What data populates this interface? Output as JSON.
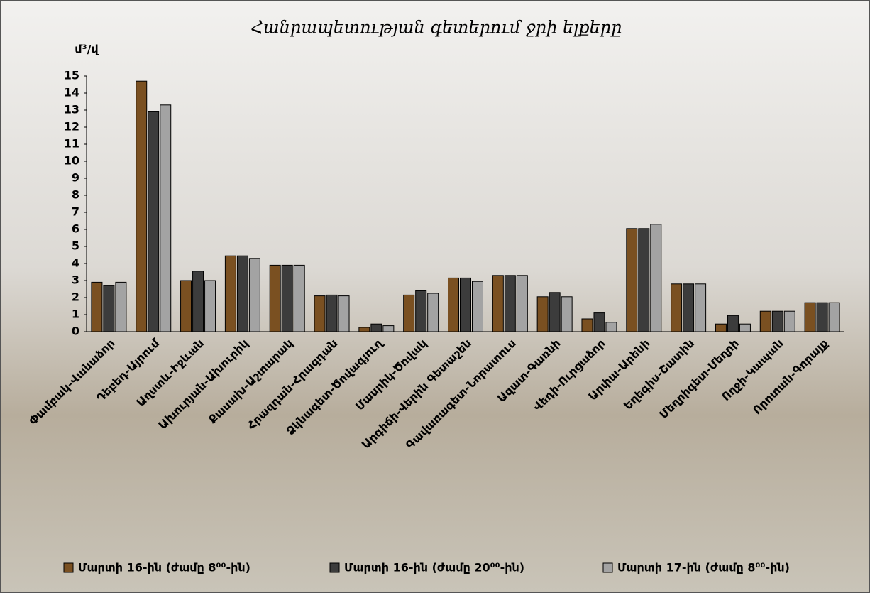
{
  "chart_data": {
    "type": "bar",
    "title": "Հանրապետության գետերում ջրի ելքերը",
    "y_label": "մ³/վ",
    "categories": [
      "Փամբակ-Վանաձոր",
      "Դեբեդ-Այրում",
      "Աղստև-Իջևան",
      "Ախուրյան-Ախուրիկ",
      "Քասախ-Աշտարակ",
      "Հրազդան-Հրազդան",
      "Ձկնագետ-Ծովագյուղ",
      "Մասրիկ-Ծովակ",
      "Արգիճի-Վերին Գետաշեն",
      "Գավառագետ-Նորատուս",
      "Ազատ-Գառնի",
      "Վեդի-Ուրցաձոր",
      "Արփա-Արենի",
      "Եղեգիս-Շատին",
      "Մեղրիգետ-Մեղրի",
      "Ողջի-Կապան",
      "Որոտան-Գորայք"
    ],
    "series": [
      {
        "name": "Մարտի 16-ին (ժամը 8⁰⁰-ին)",
        "color": "#7a5021",
        "values": [
          2.9,
          14.7,
          3.0,
          4.45,
          3.9,
          2.1,
          0.25,
          2.15,
          3.15,
          3.3,
          2.05,
          0.75,
          6.05,
          2.8,
          0.45,
          1.2,
          1.7
        ]
      },
      {
        "name": "Մարտի 16-ին (ժամը 20⁰⁰-ին)",
        "color": "#3c3c3c",
        "values": [
          2.7,
          12.9,
          3.55,
          4.45,
          3.9,
          2.15,
          0.45,
          2.4,
          3.15,
          3.3,
          2.3,
          1.1,
          6.05,
          2.8,
          0.95,
          1.2,
          1.7
        ]
      },
      {
        "name": "Մարտի 17-ին (ժամը 8⁰⁰-ին)",
        "color": "#a3a3a3",
        "values": [
          2.9,
          13.3,
          3.0,
          4.3,
          3.9,
          2.1,
          0.35,
          2.25,
          2.95,
          3.3,
          2.05,
          0.55,
          6.3,
          2.8,
          0.45,
          1.2,
          1.7
        ]
      }
    ],
    "ylim": [
      0,
      15
    ],
    "yticks": [
      0,
      1,
      2,
      3,
      4,
      5,
      6,
      7,
      8,
      9,
      10,
      11,
      12,
      13,
      14,
      15
    ],
    "legend": "bottom"
  }
}
